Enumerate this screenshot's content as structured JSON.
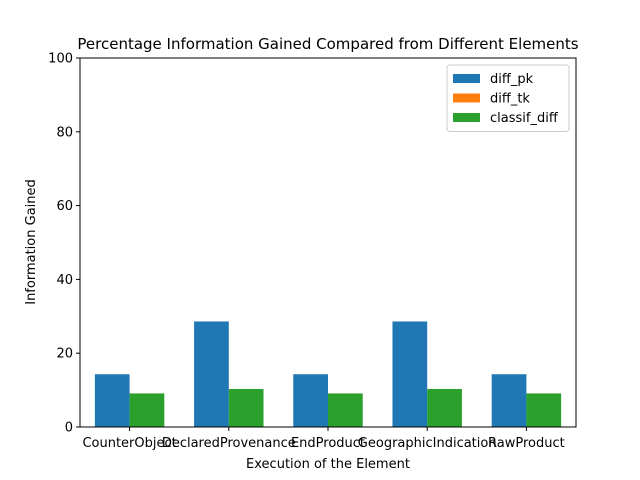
{
  "chart_data": {
    "type": "bar",
    "title": "Percentage Information Gained Compared from Different Elements",
    "xlabel": "Execution of the Element",
    "ylabel": "Information Gained",
    "categories": [
      "CounterObject",
      "DeclaredProvenance",
      "EndProduct",
      "GeographicIndication",
      "RawProduct"
    ],
    "ylim": [
      0,
      100
    ],
    "yticks": [
      0,
      20,
      40,
      60,
      80,
      100
    ],
    "grid": false,
    "legend_position": "top-right",
    "series": [
      {
        "name": "diff_pk",
        "color": "#1f77b4",
        "values": [
          14.3,
          28.6,
          14.3,
          28.6,
          14.3
        ]
      },
      {
        "name": "diff_tk",
        "color": "#ff7f0e",
        "values": [
          0,
          0,
          0,
          0,
          0
        ]
      },
      {
        "name": "classif_diff",
        "color": "#2ca02c",
        "values": [
          9.1,
          10.3,
          9.1,
          10.3,
          9.1
        ]
      }
    ]
  }
}
